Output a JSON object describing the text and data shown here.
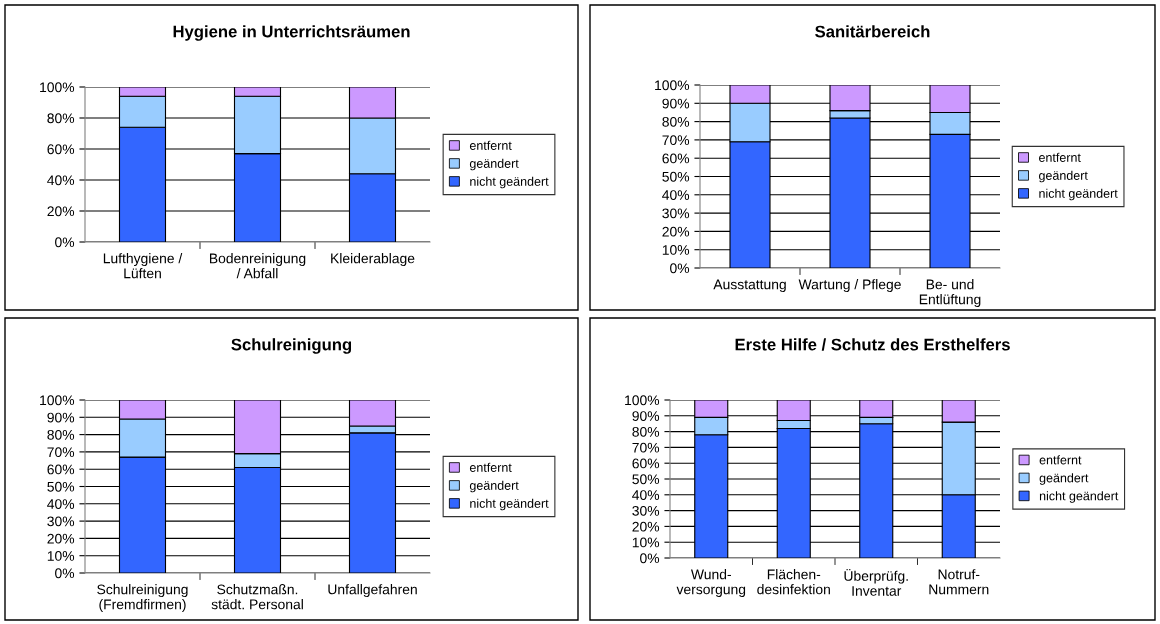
{
  "chart_data": [
    {
      "type": "bar",
      "stacked": true,
      "title": "Hygiene in Unterrichtsräumen",
      "categories": [
        "Lufthygiene /\nLüften",
        "Bodenreinigung\n/ Abfall",
        "Kleiderablage"
      ],
      "series": [
        {
          "name": "nicht geändert",
          "color": "#3366ff",
          "values": [
            74,
            57,
            44
          ]
        },
        {
          "name": "geändert",
          "color": "#99ccff",
          "values": [
            20,
            37,
            36
          ]
        },
        {
          "name": "entfernt",
          "color": "#cc99ff",
          "values": [
            6,
            6,
            20
          ]
        }
      ],
      "ylim": [
        0,
        100
      ],
      "yticks": [
        {
          "value": 0,
          "label": "0%"
        },
        {
          "value": 20,
          "label": "20%"
        },
        {
          "value": 40,
          "label": "40%"
        },
        {
          "value": 60,
          "label": "60%"
        },
        {
          "value": 80,
          "label": "80%"
        },
        {
          "value": 100,
          "label": "100%"
        }
      ],
      "grid": "y",
      "legend": "right"
    },
    {
      "type": "bar",
      "stacked": true,
      "title": "Sanitärbereich",
      "categories": [
        "Ausstattung",
        "Wartung / Pflege",
        "Be- und\nEntlüftung"
      ],
      "series": [
        {
          "name": "nicht geändert",
          "color": "#3366ff",
          "values": [
            69,
            82,
            73
          ]
        },
        {
          "name": "geändert",
          "color": "#99ccff",
          "values": [
            21,
            4,
            12
          ]
        },
        {
          "name": "entfernt",
          "color": "#cc99ff",
          "values": [
            10,
            14,
            15
          ]
        }
      ],
      "ylim": [
        0,
        100
      ],
      "yticks": [
        {
          "value": 0,
          "label": "0%"
        },
        {
          "value": 10,
          "label": "10%"
        },
        {
          "value": 20,
          "label": "20%"
        },
        {
          "value": 30,
          "label": "30%"
        },
        {
          "value": 40,
          "label": "40%"
        },
        {
          "value": 50,
          "label": "50%"
        },
        {
          "value": 60,
          "label": "60%"
        },
        {
          "value": 70,
          "label": "70%"
        },
        {
          "value": 80,
          "label": "80%"
        },
        {
          "value": 90,
          "label": "90%"
        },
        {
          "value": 100,
          "label": "100%"
        }
      ],
      "grid": "y",
      "legend": "right"
    },
    {
      "type": "bar",
      "stacked": true,
      "title": "Schulreinigung",
      "categories": [
        "Schulreinigung\n(Fremdfirmen)",
        "Schutzmaßn.\nstädt. Personal",
        "Unfallgefahren"
      ],
      "series": [
        {
          "name": "nicht geändert",
          "color": "#3366ff",
          "values": [
            67,
            61,
            81
          ]
        },
        {
          "name": "geändert",
          "color": "#99ccff",
          "values": [
            22,
            8,
            4
          ]
        },
        {
          "name": "entfernt",
          "color": "#cc99ff",
          "values": [
            11,
            31,
            15
          ]
        }
      ],
      "ylim": [
        0,
        100
      ],
      "yticks": [
        {
          "value": 0,
          "label": "0%"
        },
        {
          "value": 10,
          "label": "10%"
        },
        {
          "value": 20,
          "label": "20%"
        },
        {
          "value": 30,
          "label": "30%"
        },
        {
          "value": 40,
          "label": "40%"
        },
        {
          "value": 50,
          "label": "50%"
        },
        {
          "value": 60,
          "label": "60%"
        },
        {
          "value": 70,
          "label": "70%"
        },
        {
          "value": 80,
          "label": "80%"
        },
        {
          "value": 90,
          "label": "90%"
        },
        {
          "value": 100,
          "label": "100%"
        }
      ],
      "grid": "y",
      "legend": "right"
    },
    {
      "type": "bar",
      "stacked": true,
      "title": "Erste Hilfe / Schutz des Ersthelfers",
      "categories": [
        "Wund-\nversorgung",
        "Flächen-\ndesinfektion",
        "Überprüfg.\nInventar",
        "Notruf-\nNummern"
      ],
      "series": [
        {
          "name": "nicht geändert",
          "color": "#3366ff",
          "values": [
            78,
            82,
            85,
            40
          ]
        },
        {
          "name": "geändert",
          "color": "#99ccff",
          "values": [
            11,
            5,
            4,
            46
          ]
        },
        {
          "name": "entfernt",
          "color": "#cc99ff",
          "values": [
            11,
            13,
            11,
            14
          ]
        }
      ],
      "ylim": [
        0,
        100
      ],
      "yticks": [
        {
          "value": 0,
          "label": "0%"
        },
        {
          "value": 10,
          "label": "10%"
        },
        {
          "value": 20,
          "label": "20%"
        },
        {
          "value": 30,
          "label": "30%"
        },
        {
          "value": 40,
          "label": "40%"
        },
        {
          "value": 50,
          "label": "50%"
        },
        {
          "value": 60,
          "label": "60%"
        },
        {
          "value": 70,
          "label": "70%"
        },
        {
          "value": 80,
          "label": "80%"
        },
        {
          "value": 90,
          "label": "90%"
        },
        {
          "value": 100,
          "label": "100%"
        }
      ],
      "grid": "y",
      "legend": "right"
    }
  ]
}
